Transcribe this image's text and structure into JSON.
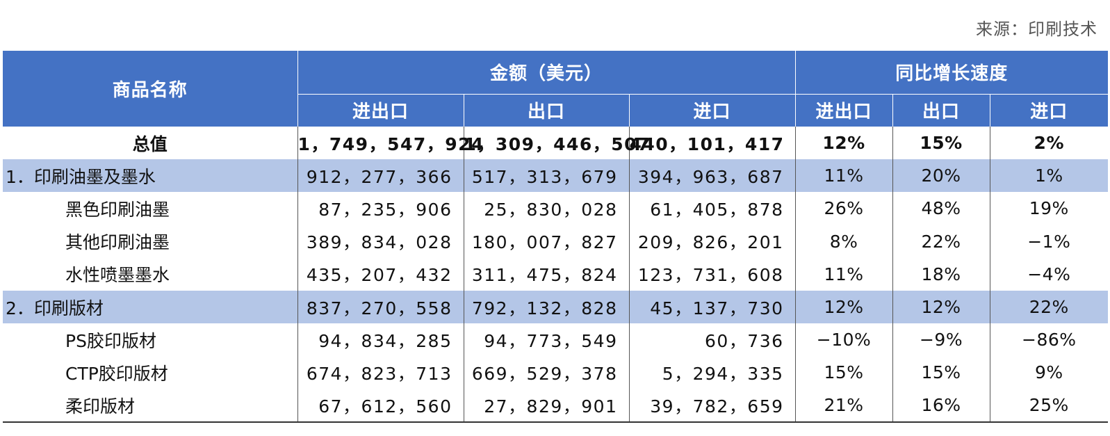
{
  "source_note": "来源：印刷技术",
  "table": {
    "header_name": "商品名称",
    "group_amount": "金额（美元）",
    "group_growth": "同比增长速度",
    "sub_cols": [
      "进出口",
      "出口",
      "进口",
      "进出口",
      "出口",
      "进口"
    ],
    "rows": [
      {
        "name": "总值",
        "kind": "total",
        "values": [
          "1，749，547，924",
          "1，309，446，507",
          "440，101，417"
        ],
        "growth": [
          "12%",
          "15%",
          "2%"
        ]
      },
      {
        "name": "1．印刷油墨及墨水",
        "kind": "cat",
        "values": [
          "912，277，366",
          "517，313，679",
          "394，963，687"
        ],
        "growth": [
          "11%",
          "20%",
          "1%"
        ]
      },
      {
        "name": "黑色印刷油墨",
        "kind": "sub",
        "values": [
          "87，235，906",
          "25，830，028",
          "61，405，878"
        ],
        "growth": [
          "26%",
          "48%",
          "19%"
        ]
      },
      {
        "name": "其他印刷油墨",
        "kind": "sub",
        "values": [
          "389，834，028",
          "180，007，827",
          "209，826，201"
        ],
        "growth": [
          "8%",
          "22%",
          "−1%"
        ]
      },
      {
        "name": "水性喷墨墨水",
        "kind": "sub",
        "values": [
          "435，207，432",
          "311，475，824",
          "123，731，608"
        ],
        "growth": [
          "11%",
          "18%",
          "−4%"
        ]
      },
      {
        "name": "2．印刷版材",
        "kind": "cat",
        "values": [
          "837，270，558",
          "792，132，828",
          "45，137，730"
        ],
        "growth": [
          "12%",
          "12%",
          "22%"
        ]
      },
      {
        "name": "PS胶印版材",
        "kind": "sub",
        "values": [
          "94，834，285",
          "94，773，549",
          "60，736"
        ],
        "growth": [
          "−10%",
          "−9%",
          "−86%"
        ]
      },
      {
        "name": "CTP胶印版材",
        "kind": "sub",
        "values": [
          "674，823，713",
          "669，529，378",
          "5，294，335"
        ],
        "growth": [
          "15%",
          "15%",
          "9%"
        ]
      },
      {
        "name": "柔印版材",
        "kind": "sub",
        "values": [
          "67，612，560",
          "27，829，901",
          "39，782，659"
        ],
        "growth": [
          "21%",
          "16%",
          "25%"
        ]
      }
    ]
  }
}
